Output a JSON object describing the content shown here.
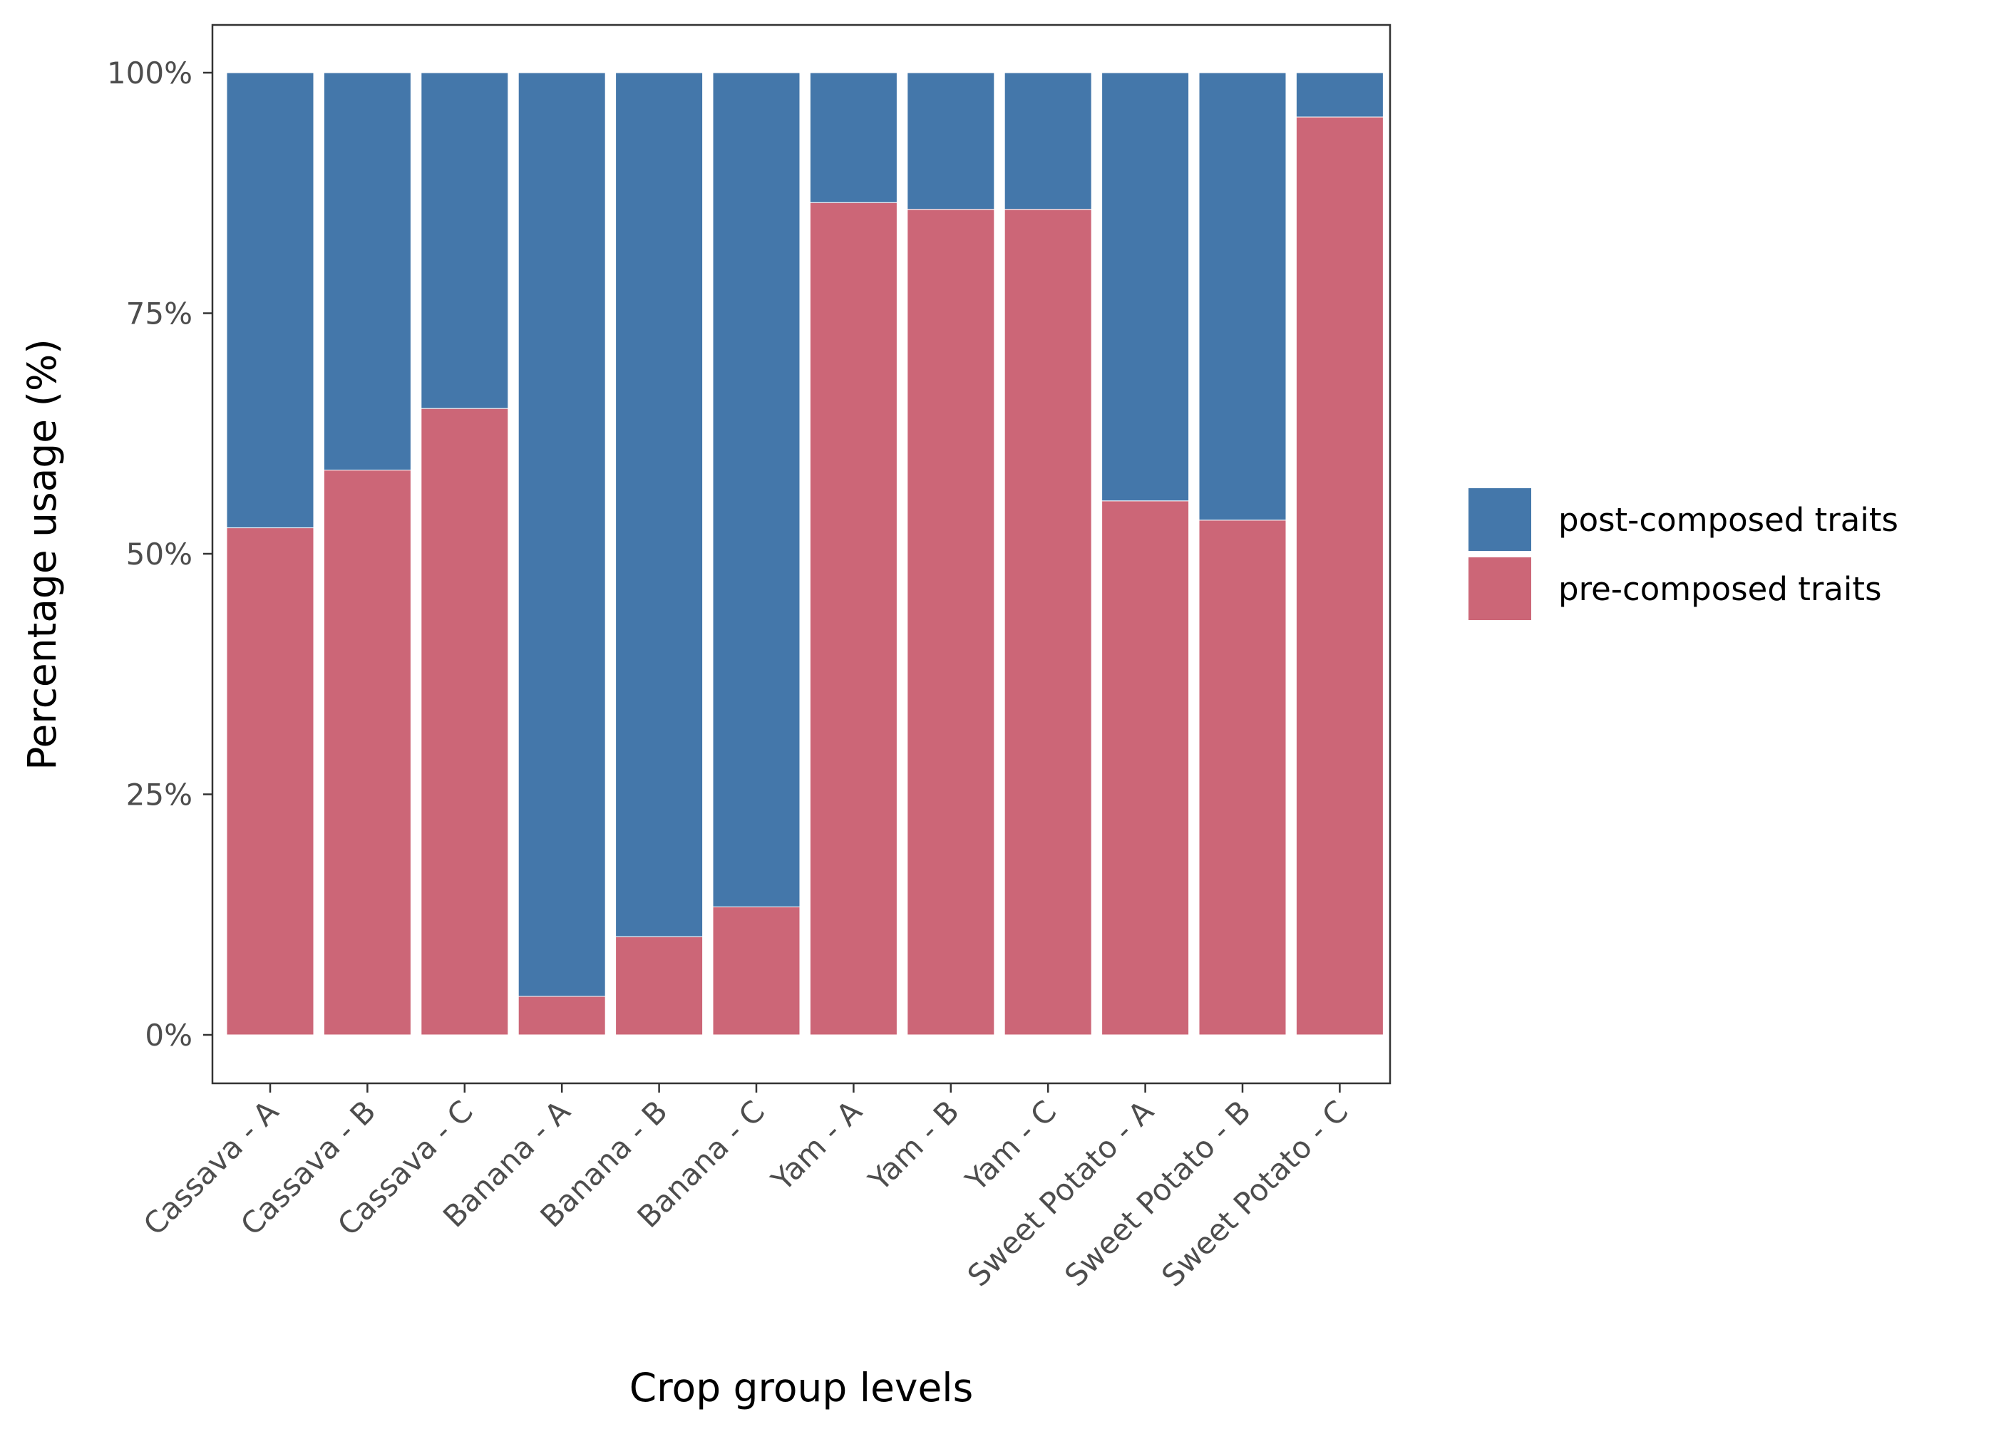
{
  "chart_data": {
    "type": "bar",
    "stacked": true,
    "percent": true,
    "title": "",
    "xlabel": "Crop group levels",
    "ylabel": "Percentage usage (%)",
    "ylim": [
      0,
      1
    ],
    "y_ticks": [
      0,
      0.25,
      0.5,
      0.75,
      1.0
    ],
    "y_tick_labels": [
      "0%",
      "25%",
      "50%",
      "75%",
      "100%"
    ],
    "grid": false,
    "legend_position": "right",
    "categories": [
      "Cassava - A",
      "Cassava - B",
      "Cassava - C",
      "Banana - A",
      "Banana - B",
      "Banana - C",
      "Yam - A",
      "Yam - B",
      "Yam - C",
      "Sweet Potato - A",
      "Sweet Potato - B",
      "Sweet Potato - C"
    ],
    "series": [
      {
        "name": "pre-composed traits",
        "color": "#CC6677",
        "values": [
          0.527,
          0.587,
          0.651,
          0.04,
          0.102,
          0.133,
          0.865,
          0.858,
          0.858,
          0.555,
          0.535,
          0.954
        ]
      },
      {
        "name": "post-composed traits",
        "color": "#4477AA",
        "values": [
          0.473,
          0.413,
          0.349,
          0.96,
          0.898,
          0.867,
          0.135,
          0.142,
          0.142,
          0.445,
          0.465,
          0.046
        ]
      }
    ],
    "legend_order": [
      "post-composed traits",
      "pre-composed traits"
    ]
  }
}
